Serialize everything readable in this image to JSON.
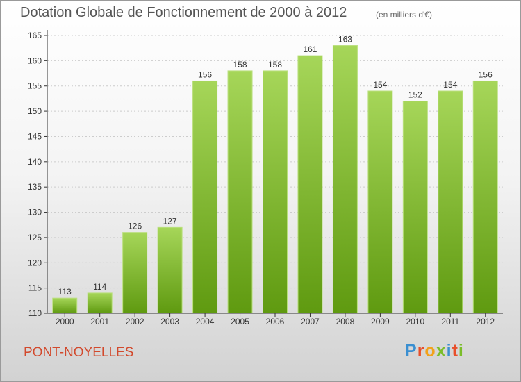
{
  "header": {
    "title": "Dotation Globale de Fonctionnement de 2000 à 2012",
    "subtitle": "(en milliers d'€)"
  },
  "footer": {
    "commune": "PONT-NOYELLES",
    "logo_letters": [
      "P",
      "r",
      "o",
      "x",
      "i",
      "t",
      "i"
    ],
    "logo_colors": [
      "#3a8fd1",
      "#e84f2a",
      "#f2a21b",
      "#7bbd2a",
      "#3a8fd1",
      "#e84f2a",
      "#7bbd2a"
    ]
  },
  "colors": {
    "bar_top": "#a6d659",
    "bar_bottom": "#5f9a10",
    "axis": "#333333",
    "grid": "#cccccc"
  },
  "chart_data": {
    "type": "bar",
    "categories": [
      "2000",
      "2001",
      "2002",
      "2003",
      "2004",
      "2005",
      "2006",
      "2007",
      "2008",
      "2009",
      "2010",
      "2011",
      "2012"
    ],
    "values": [
      113,
      114,
      126,
      127,
      156,
      158,
      158,
      161,
      163,
      154,
      152,
      154,
      156
    ],
    "ylim": [
      110,
      165
    ],
    "yticks": [
      110,
      115,
      120,
      125,
      130,
      135,
      140,
      145,
      150,
      155,
      160,
      165
    ],
    "grid": true,
    "xlabel": "",
    "ylabel": ""
  }
}
